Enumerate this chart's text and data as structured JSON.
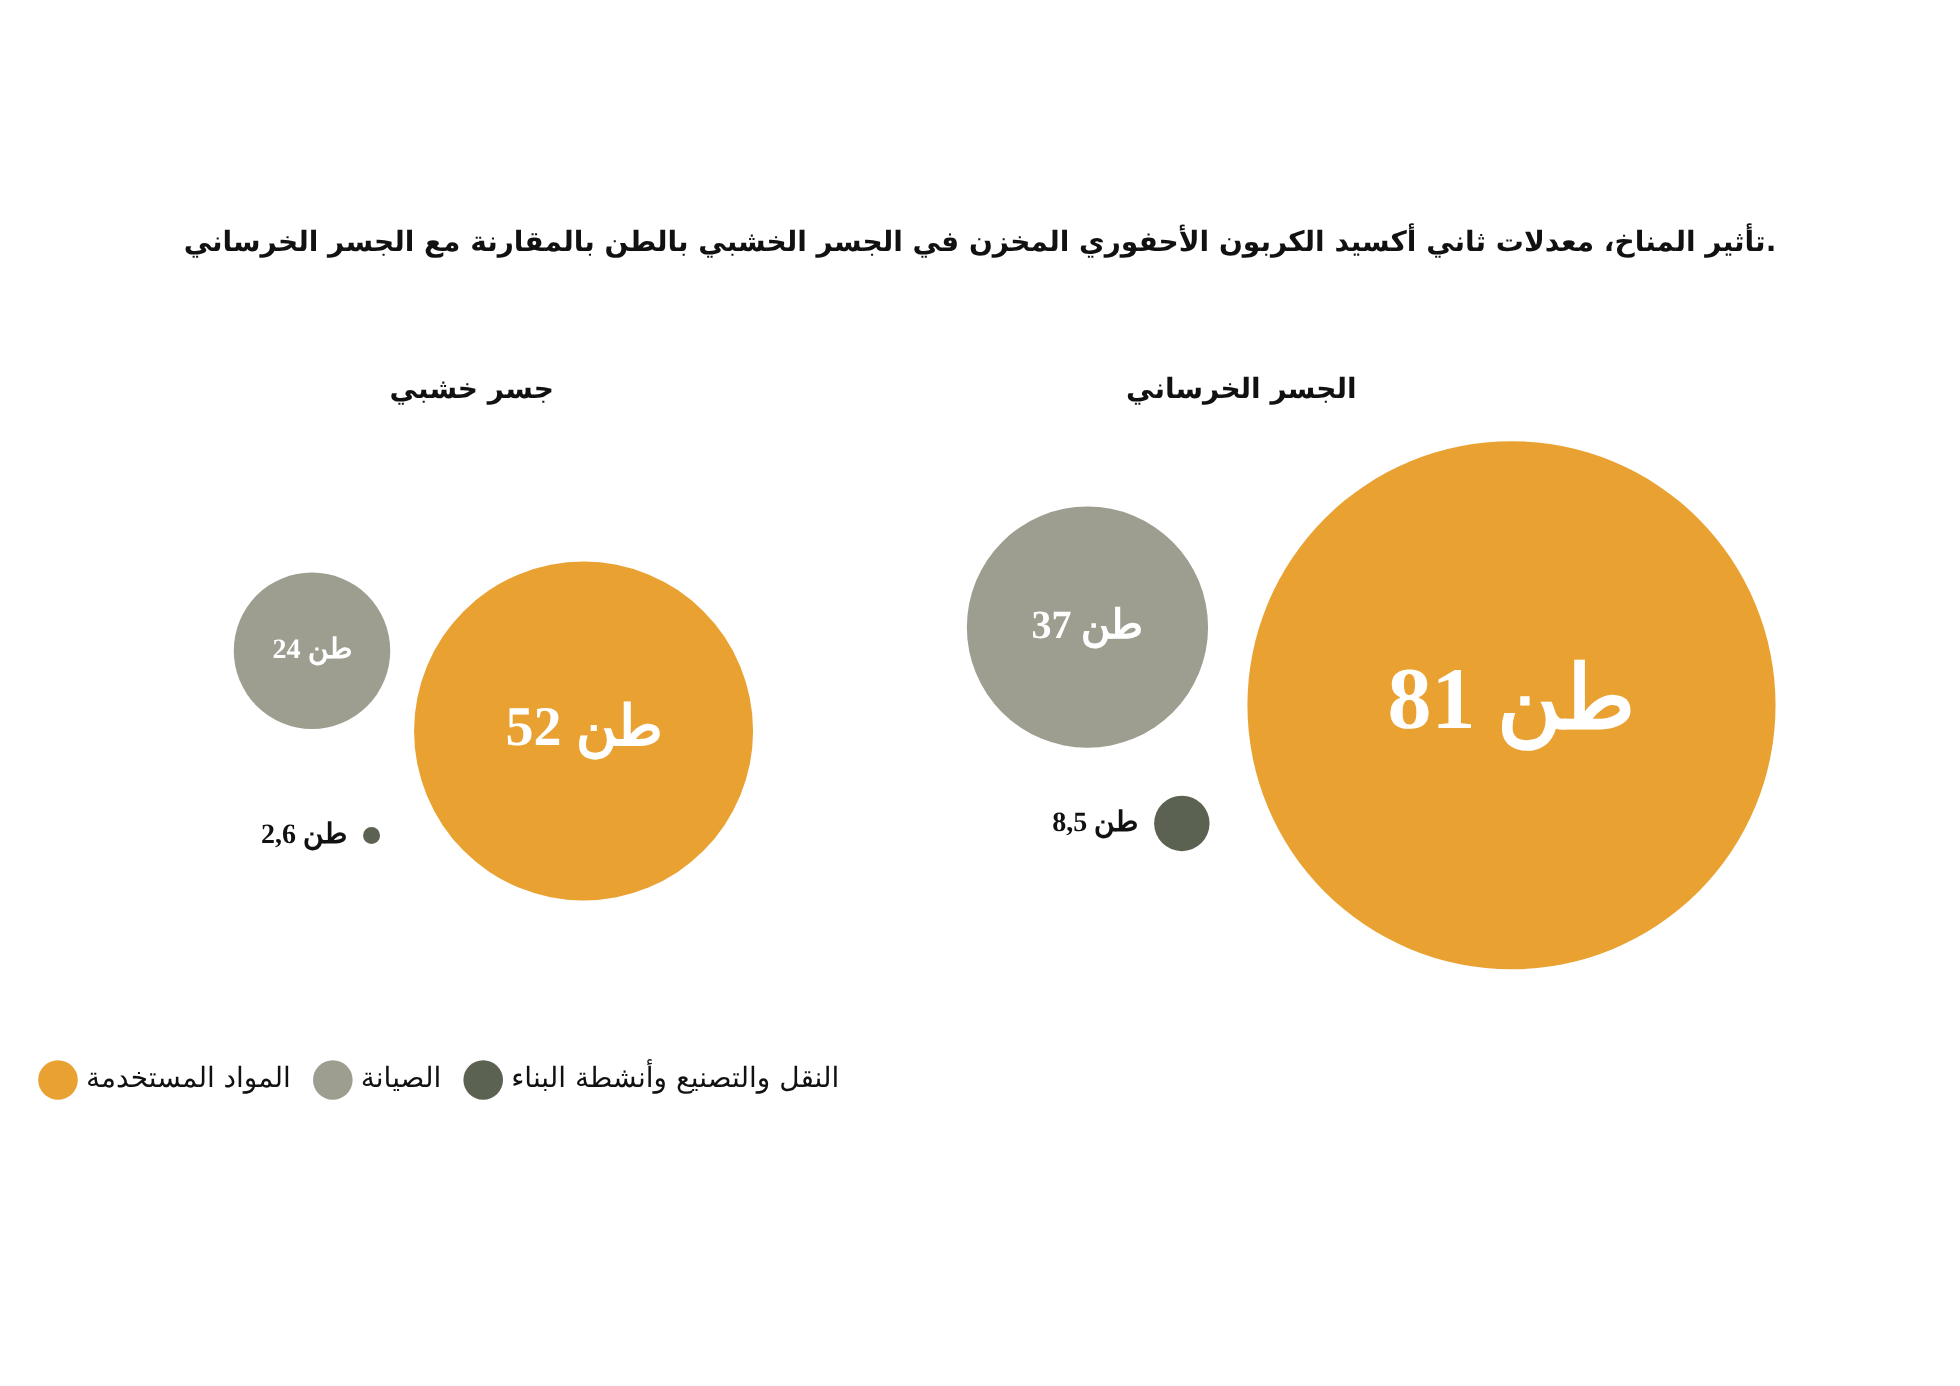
{
  "chart_data": {
    "type": "other",
    "title": "تأثير المناخ، معدلات ثاني أكسيد الكربون الأحفوري المخزن في الجسر الخشبي بالطن بالمقارنة مع الجسر الخرساني.",
    "categories": [
      "جسر خشبي",
      "الجسر الخرساني"
    ],
    "series": [
      {
        "name": "المواد المستخدمة",
        "color": "#e9a232",
        "values": [
          52,
          81
        ],
        "value_labels": [
          "52 طن",
          "81 طن"
        ]
      },
      {
        "name": "الصيانة",
        "color": "#9d9d90",
        "values": [
          24,
          37
        ],
        "value_labels": [
          "24 طن",
          "37 طن"
        ]
      },
      {
        "name": "النقل والتصنيع وأنشطة البناء",
        "color": "#5c6251",
        "values": [
          2.6,
          8.5
        ],
        "value_labels": [
          "2,6 طن",
          "8,5 طن"
        ]
      }
    ],
    "legend": "bottom left"
  }
}
